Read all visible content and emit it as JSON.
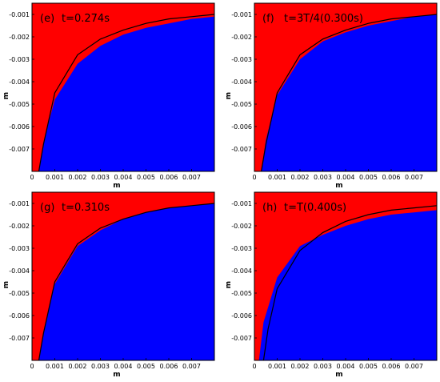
{
  "chart_data": [
    {
      "type": "heatmap",
      "panel_label": "(e)",
      "title": "t=0.274s",
      "xlabel": "m",
      "ylabel": "m",
      "xlim": [
        0,
        0.008
      ],
      "ylim": [
        -0.008,
        -0.0005
      ],
      "x_ticks": [
        "0",
        "0.001",
        "0.002",
        "0.003",
        "0.004",
        "0.005",
        "0.006",
        "0.007"
      ],
      "y_ticks": [
        "-0.001",
        "-0.002",
        "-0.003",
        "-0.004",
        "-0.005",
        "-0.006",
        "-0.007"
      ],
      "colors": {
        "upper_region": "#ff0000",
        "lower_region": "#0000ff",
        "reference_curve": "#000000"
      },
      "interface_curve": {
        "x": [
          0.0003,
          0.0005,
          0.001,
          0.002,
          0.003,
          0.004,
          0.005,
          0.006,
          0.007,
          0.008
        ],
        "y": [
          -0.008,
          -0.0067,
          -0.0048,
          -0.0032,
          -0.0024,
          -0.0019,
          -0.0016,
          -0.0014,
          -0.0012,
          -0.0011
        ]
      },
      "reference_curve": {
        "x": [
          0.0003,
          0.0005,
          0.001,
          0.002,
          0.003,
          0.004,
          0.005,
          0.006,
          0.007,
          0.008
        ],
        "y": [
          -0.008,
          -0.0068,
          -0.0045,
          -0.0028,
          -0.0021,
          -0.0017,
          -0.0014,
          -0.0012,
          -0.0011,
          -0.001
        ]
      }
    },
    {
      "type": "heatmap",
      "panel_label": "(f)",
      "title": "t=3T/4(0.300s)",
      "xlabel": "m",
      "ylabel": "m",
      "xlim": [
        0,
        0.008
      ],
      "ylim": [
        -0.008,
        -0.0005
      ],
      "x_ticks": [
        "0",
        "0.001",
        "0.002",
        "0.003",
        "0.004",
        "0.005",
        "0.006",
        "0.007"
      ],
      "y_ticks": [
        "-0.001",
        "-0.002",
        "-0.003",
        "-0.004",
        "-0.005",
        "-0.006",
        "-0.007"
      ],
      "colors": {
        "upper_region": "#ff0000",
        "lower_region": "#0000ff",
        "reference_curve": "#000000"
      },
      "interface_curve": {
        "x": [
          0.0003,
          0.0005,
          0.001,
          0.002,
          0.003,
          0.004,
          0.005,
          0.006,
          0.007,
          0.008
        ],
        "y": [
          -0.008,
          -0.0066,
          -0.0046,
          -0.003,
          -0.0022,
          -0.0018,
          -0.0015,
          -0.0013,
          -0.0011,
          -0.001
        ]
      },
      "reference_curve": {
        "x": [
          0.0003,
          0.0005,
          0.001,
          0.002,
          0.003,
          0.004,
          0.005,
          0.006,
          0.007,
          0.008
        ],
        "y": [
          -0.008,
          -0.0068,
          -0.0045,
          -0.0028,
          -0.0021,
          -0.0017,
          -0.0014,
          -0.0012,
          -0.0011,
          -0.001
        ]
      }
    },
    {
      "type": "heatmap",
      "panel_label": "(g)",
      "title": "t=0.310s",
      "xlabel": "m",
      "ylabel": "m",
      "xlim": [
        0,
        0.008
      ],
      "ylim": [
        -0.008,
        -0.0005
      ],
      "x_ticks": [
        "0",
        "0.001",
        "0.002",
        "0.003",
        "0.004",
        "0.005",
        "0.006",
        "0.007"
      ],
      "y_ticks": [
        "-0.001",
        "-0.002",
        "-0.003",
        "-0.004",
        "-0.005",
        "-0.006",
        "-0.007"
      ],
      "colors": {
        "upper_region": "#ff0000",
        "lower_region": "#0000ff",
        "reference_curve": "#000000"
      },
      "interface_curve": {
        "x": [
          0.0003,
          0.0005,
          0.001,
          0.002,
          0.003,
          0.004,
          0.005,
          0.006,
          0.007,
          0.008
        ],
        "y": [
          -0.008,
          -0.0067,
          -0.0046,
          -0.0029,
          -0.0022,
          -0.0017,
          -0.0014,
          -0.0012,
          -0.0011,
          -0.001
        ]
      },
      "reference_curve": {
        "x": [
          0.0003,
          0.0005,
          0.001,
          0.002,
          0.003,
          0.004,
          0.005,
          0.006,
          0.007,
          0.008
        ],
        "y": [
          -0.008,
          -0.0068,
          -0.0045,
          -0.0028,
          -0.0021,
          -0.0017,
          -0.0014,
          -0.0012,
          -0.0011,
          -0.001
        ]
      }
    },
    {
      "type": "heatmap",
      "panel_label": "(h)",
      "title": "t=T(0.400s)",
      "xlabel": "m",
      "ylabel": "m",
      "xlim": [
        0,
        0.008
      ],
      "ylim": [
        -0.008,
        -0.0005
      ],
      "x_ticks": [
        "0",
        "0.001",
        "0.002",
        "0.003",
        "0.004",
        "0.005",
        "0.006",
        "0.007"
      ],
      "y_ticks": [
        "-0.001",
        "-0.002",
        "-0.003",
        "-0.004",
        "-0.005",
        "-0.006",
        "-0.007"
      ],
      "colors": {
        "upper_region": "#ff0000",
        "lower_region": "#0000ff",
        "reference_curve": "#000000"
      },
      "interface_curve": {
        "x": [
          0.0002,
          0.0004,
          0.001,
          0.002,
          0.003,
          0.004,
          0.005,
          0.006,
          0.007,
          0.008
        ],
        "y": [
          -0.008,
          -0.0063,
          -0.0043,
          -0.0029,
          -0.0024,
          -0.002,
          -0.0017,
          -0.0015,
          -0.0014,
          -0.0013
        ]
      },
      "reference_curve": {
        "x": [
          0.0004,
          0.0006,
          0.001,
          0.002,
          0.003,
          0.004,
          0.005,
          0.006,
          0.007,
          0.008
        ],
        "y": [
          -0.008,
          -0.0066,
          -0.0048,
          -0.0031,
          -0.0023,
          -0.0018,
          -0.0015,
          -0.0013,
          -0.0012,
          -0.0011
        ]
      }
    }
  ]
}
